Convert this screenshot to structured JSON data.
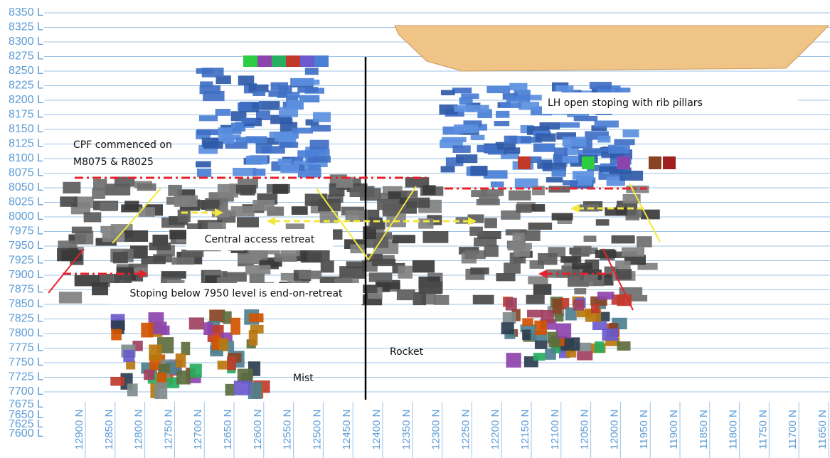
{
  "section": {
    "levels": [
      "8350 L",
      "8325 L",
      "8300 L",
      "8275 L",
      "8250 L",
      "8225 L",
      "8200 L",
      "8175 L",
      "8150 L",
      "8125 L",
      "8100 L",
      "8075 L",
      "8050 L",
      "8025 L",
      "8000 L",
      "7975 L",
      "7950 L",
      "7925 L",
      "7900 L",
      "7875 L",
      "7850 L",
      "7825 L",
      "7800 L",
      "7775 L",
      "7750 L",
      "7725 L",
      "7700 L",
      "7675 L",
      "7650 L",
      "7625 L",
      "7600 L"
    ],
    "northings": [
      "12900 N",
      "12850 N",
      "12800 N",
      "12750 N",
      "12700 N",
      "12650 N",
      "12600 N",
      "12550 N",
      "12500 N",
      "12450 N",
      "12400 N",
      "12350 N",
      "12300 N",
      "12250 N",
      "12200 N",
      "12150 N",
      "12100 N",
      "12050 N",
      "12000 N",
      "11950 N",
      "11900 N",
      "11850 N",
      "11800 N",
      "11750 N",
      "11700 N",
      "11650 N"
    ],
    "annotations": {
      "cpf_line1": "CPF commenced on",
      "cpf_line2": "M8075 & R8025",
      "lh_open": "LH open stoping with rib pillars",
      "central": "Central access retreat",
      "stoping": "Stoping below 7950 level is end-on-retreat",
      "rocket": "Rocket",
      "mist": "Mist"
    }
  }
}
